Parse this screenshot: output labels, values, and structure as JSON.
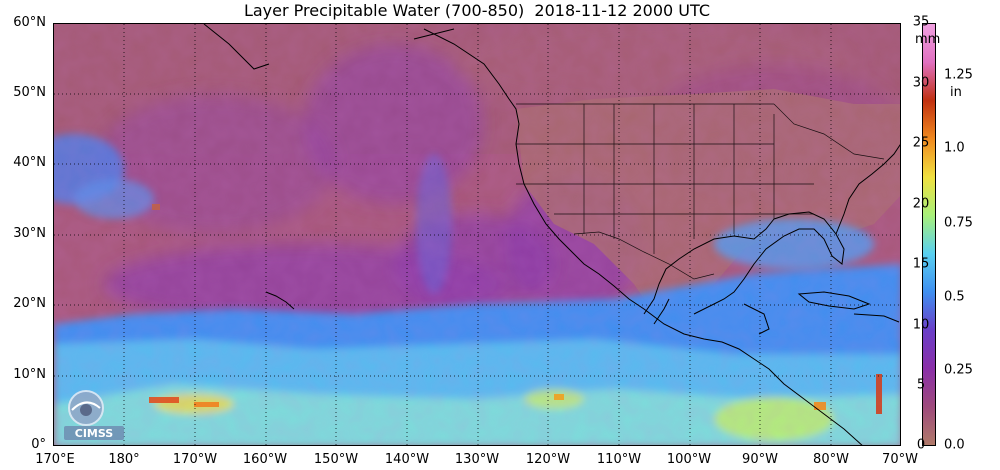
{
  "title": "Layer Precipitable Water (700-850)  2018-11-12 2000 UTC",
  "lat_labels": [
    "60°N",
    "50°N",
    "40°N",
    "30°N",
    "20°N",
    "10°N",
    "0°"
  ],
  "lon_labels": [
    "170°E",
    "180°",
    "170°W",
    "160°W",
    "150°W",
    "140°W",
    "130°W",
    "120°W",
    "110°W",
    "100°W",
    "90°W",
    "80°W",
    "70°W"
  ],
  "colorbar": {
    "mm_ticks": [
      "35",
      "30",
      "25",
      "20",
      "15",
      "10",
      "5",
      "0"
    ],
    "mm_unit": "mm",
    "in_ticks": [
      "1.25",
      "1.0",
      "0.75",
      "0.5",
      "0.25",
      "0.0"
    ],
    "in_unit": "in",
    "colors": [
      "#b07a6a",
      "#9e4a7c",
      "#8a2fa8",
      "#6a3fc8",
      "#3f8ff0",
      "#5ad0f0",
      "#a8f07a",
      "#f0e040",
      "#f08a20",
      "#c03010",
      "#e070c0",
      "#f0a0e0"
    ]
  },
  "logo_text": "CIMSS"
}
